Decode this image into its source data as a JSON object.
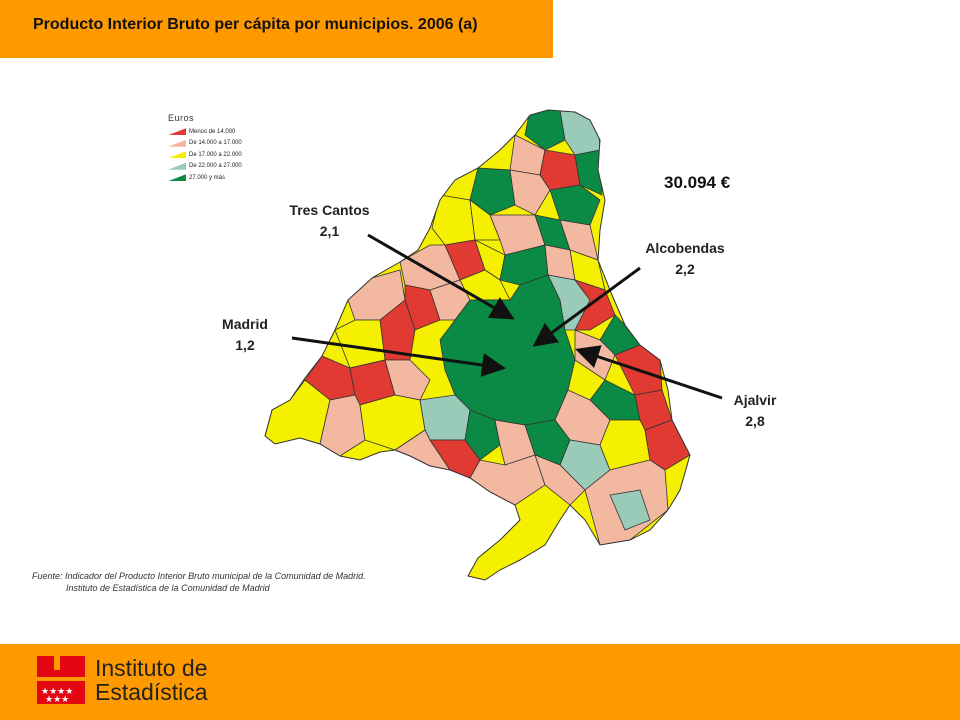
{
  "header": {
    "title": "Producto Interior Bruto per cápita por municipios. 2006 (a)"
  },
  "legend": {
    "title": "Euros",
    "items": [
      {
        "label": "Menos de 14.000",
        "color": "#e03a32"
      },
      {
        "label": "De 14.000  a  17.000",
        "color": "#f2b8a0"
      },
      {
        "label": "De 17.000  a  22.000",
        "color": "#f5f000"
      },
      {
        "label": "De 22.000  a  27.000",
        "color": "#99cbb8"
      },
      {
        "label": "27.000 y más",
        "color": "#0b8a45"
      }
    ]
  },
  "annotations": {
    "tres_cantos": {
      "name": "Tres Cantos",
      "value": "2,1"
    },
    "alcobendas": {
      "name": "Alcobendas",
      "value": "2,2"
    },
    "madrid": {
      "name": "Madrid",
      "value": "1,2"
    },
    "ajalvir": {
      "name": "Ajalvir",
      "value": "2,8"
    }
  },
  "big_value": "30.094 €",
  "source": {
    "line1": "Fuente: Indicador del Producto Interior Bruto municipal de la Comunidad de Madrid.",
    "line2": "Instituto de Estadística de la Comunidad de Madrid"
  },
  "footer": {
    "logo_line1": "Instituto de",
    "logo_line2": "Estadística"
  }
}
